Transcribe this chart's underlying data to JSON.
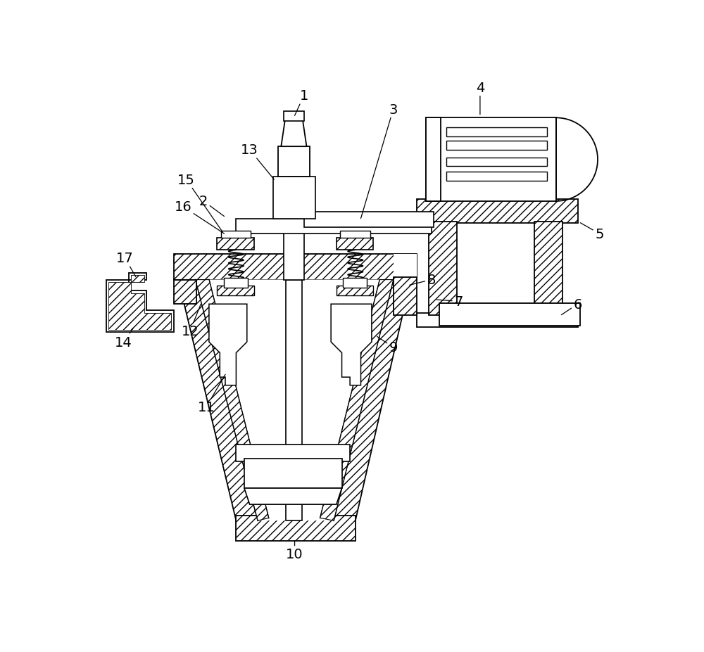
{
  "bg": "#ffffff",
  "lc": "#000000",
  "lw": 1.3,
  "fw": 10.0,
  "fh": 9.28,
  "dpi": 100,
  "fs": 14
}
